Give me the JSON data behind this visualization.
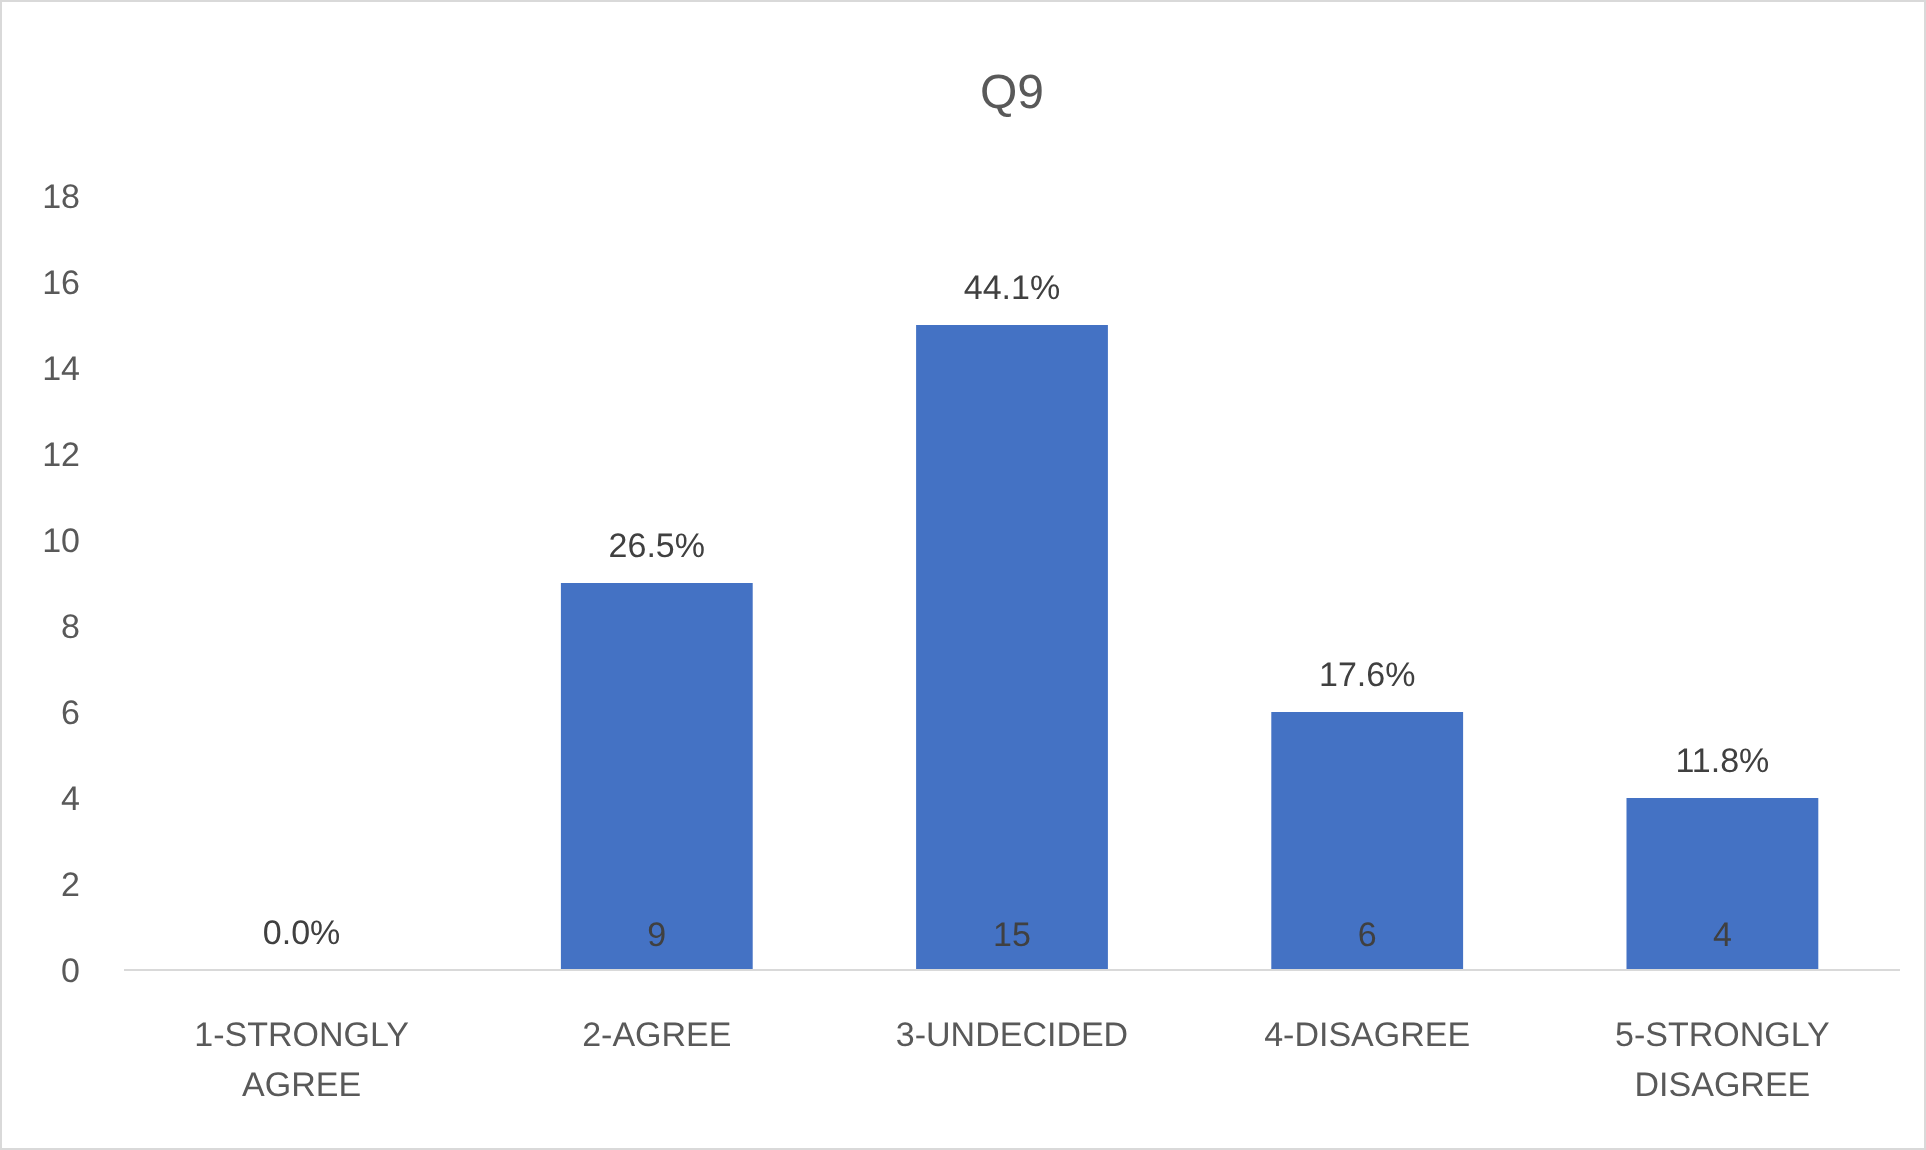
{
  "chart_data": {
    "type": "bar",
    "title": "Q9",
    "categories": [
      "1-STRONGLY AGREE",
      "2-AGREE",
      "3-UNDECIDED",
      "4-DISAGREE",
      "5-STRONGLY DISAGREE"
    ],
    "values": [
      0,
      9,
      15,
      6,
      4
    ],
    "color": "#4472c4",
    "value_labels": [
      null,
      "9",
      "15",
      "6",
      "4"
    ],
    "annotations": [
      {
        "text": "0.0%",
        "x": "1-STRONGLY AGREE",
        "y": 0
      },
      {
        "text": "26.5%",
        "x": "2-AGREE",
        "y": 9
      },
      {
        "text": "44.1%",
        "x": "3-UNDECIDED",
        "y": 15
      },
      {
        "text": "17.6%",
        "x": "4-DISAGREE",
        "y": 6
      },
      {
        "text": "11.8%",
        "x": "5-STRONGLY DISAGREE",
        "y": 4
      }
    ],
    "ylim": [
      0,
      18
    ],
    "yticks": [
      0,
      2,
      4,
      6,
      8,
      10,
      12,
      14,
      16,
      18
    ],
    "grid": false
  }
}
